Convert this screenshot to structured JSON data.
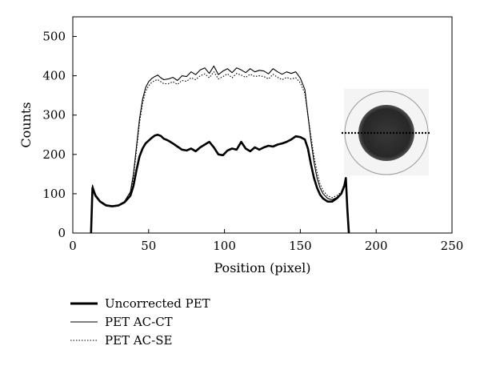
{
  "chart_data": {
    "type": "line",
    "xlabel": "Position (pixel)",
    "ylabel": "Counts",
    "xlim": [
      0,
      250
    ],
    "ylim": [
      0,
      550
    ],
    "xticks": [
      0,
      50,
      100,
      150,
      200,
      250
    ],
    "yticks": [
      0,
      100,
      200,
      300,
      400,
      500
    ],
    "grid": false,
    "legend_position": "bottom-left",
    "series": [
      {
        "name": "Uncorrected PET",
        "style": "thick",
        "x": [
          12,
          13,
          15,
          18,
          22,
          26,
          30,
          34,
          38,
          40,
          42,
          44,
          46,
          48,
          50,
          52,
          54,
          56,
          58,
          60,
          63,
          66,
          69,
          72,
          75,
          78,
          81,
          84,
          87,
          90,
          93,
          96,
          99,
          102,
          105,
          108,
          111,
          114,
          117,
          120,
          123,
          126,
          129,
          132,
          135,
          138,
          141,
          144,
          147,
          150,
          153,
          155,
          157,
          159,
          161,
          163,
          165,
          168,
          171,
          174,
          177,
          179,
          180,
          181,
          182
        ],
        "y": [
          0,
          115,
          95,
          80,
          70,
          68,
          70,
          78,
          95,
          120,
          160,
          195,
          215,
          228,
          235,
          242,
          248,
          250,
          247,
          240,
          235,
          228,
          220,
          212,
          210,
          215,
          208,
          218,
          225,
          232,
          218,
          200,
          198,
          210,
          215,
          212,
          232,
          215,
          208,
          218,
          212,
          218,
          222,
          220,
          225,
          228,
          232,
          238,
          246,
          244,
          238,
          215,
          175,
          140,
          115,
          98,
          88,
          80,
          80,
          88,
          100,
          120,
          140,
          60,
          0
        ]
      },
      {
        "name": "PET AC-CT",
        "style": "thin",
        "x": [
          12,
          13,
          15,
          18,
          22,
          26,
          30,
          34,
          38,
          40,
          42,
          44,
          46,
          48,
          50,
          52,
          54,
          56,
          58,
          60,
          63,
          66,
          69,
          72,
          75,
          78,
          81,
          84,
          87,
          90,
          93,
          96,
          99,
          102,
          105,
          108,
          111,
          114,
          117,
          120,
          123,
          126,
          129,
          132,
          135,
          138,
          141,
          144,
          147,
          150,
          153,
          155,
          157,
          159,
          161,
          163,
          165,
          168,
          171,
          174,
          177,
          179,
          180,
          181,
          182
        ],
        "y": [
          0,
          122,
          98,
          82,
          72,
          69,
          71,
          80,
          105,
          150,
          220,
          290,
          340,
          370,
          385,
          393,
          398,
          402,
          395,
          390,
          392,
          396,
          388,
          400,
          398,
          410,
          403,
          415,
          420,
          406,
          425,
          403,
          412,
          418,
          408,
          420,
          415,
          408,
          418,
          410,
          414,
          412,
          405,
          418,
          410,
          404,
          410,
          406,
          410,
          394,
          365,
          300,
          235,
          180,
          140,
          115,
          100,
          88,
          85,
          90,
          100,
          118,
          140,
          60,
          0
        ]
      },
      {
        "name": "PET AC-SE",
        "style": "dotted",
        "x": [
          12,
          13,
          15,
          18,
          22,
          26,
          30,
          34,
          38,
          40,
          42,
          44,
          46,
          48,
          50,
          52,
          54,
          56,
          58,
          60,
          63,
          66,
          69,
          72,
          75,
          78,
          81,
          84,
          87,
          90,
          93,
          96,
          99,
          102,
          105,
          108,
          111,
          114,
          117,
          120,
          123,
          126,
          129,
          132,
          135,
          138,
          141,
          144,
          147,
          150,
          153,
          155,
          157,
          159,
          161,
          163,
          165,
          168,
          171,
          174,
          177,
          179,
          180,
          181,
          182
        ],
        "y": [
          0,
          118,
          96,
          80,
          71,
          68,
          70,
          79,
          100,
          140,
          210,
          280,
          330,
          360,
          375,
          383,
          388,
          390,
          385,
          380,
          380,
          385,
          378,
          388,
          386,
          395,
          390,
          400,
          405,
          395,
          410,
          392,
          398,
          405,
          395,
          406,
          402,
          396,
          404,
          398,
          400,
          398,
          392,
          404,
          396,
          390,
          396,
          392,
          395,
          382,
          355,
          300,
          245,
          195,
          155,
          125,
          108,
          95,
          90,
          95,
          105,
          125,
          140,
          60,
          0
        ]
      }
    ],
    "legend": [
      {
        "label": "Uncorrected PET",
        "style": "thick"
      },
      {
        "label": "PET AC-CT",
        "style": "thin"
      },
      {
        "label": "PET AC-SE",
        "style": "dotted"
      }
    ]
  },
  "inset": {
    "description_icon": "phantom-image-icon"
  }
}
